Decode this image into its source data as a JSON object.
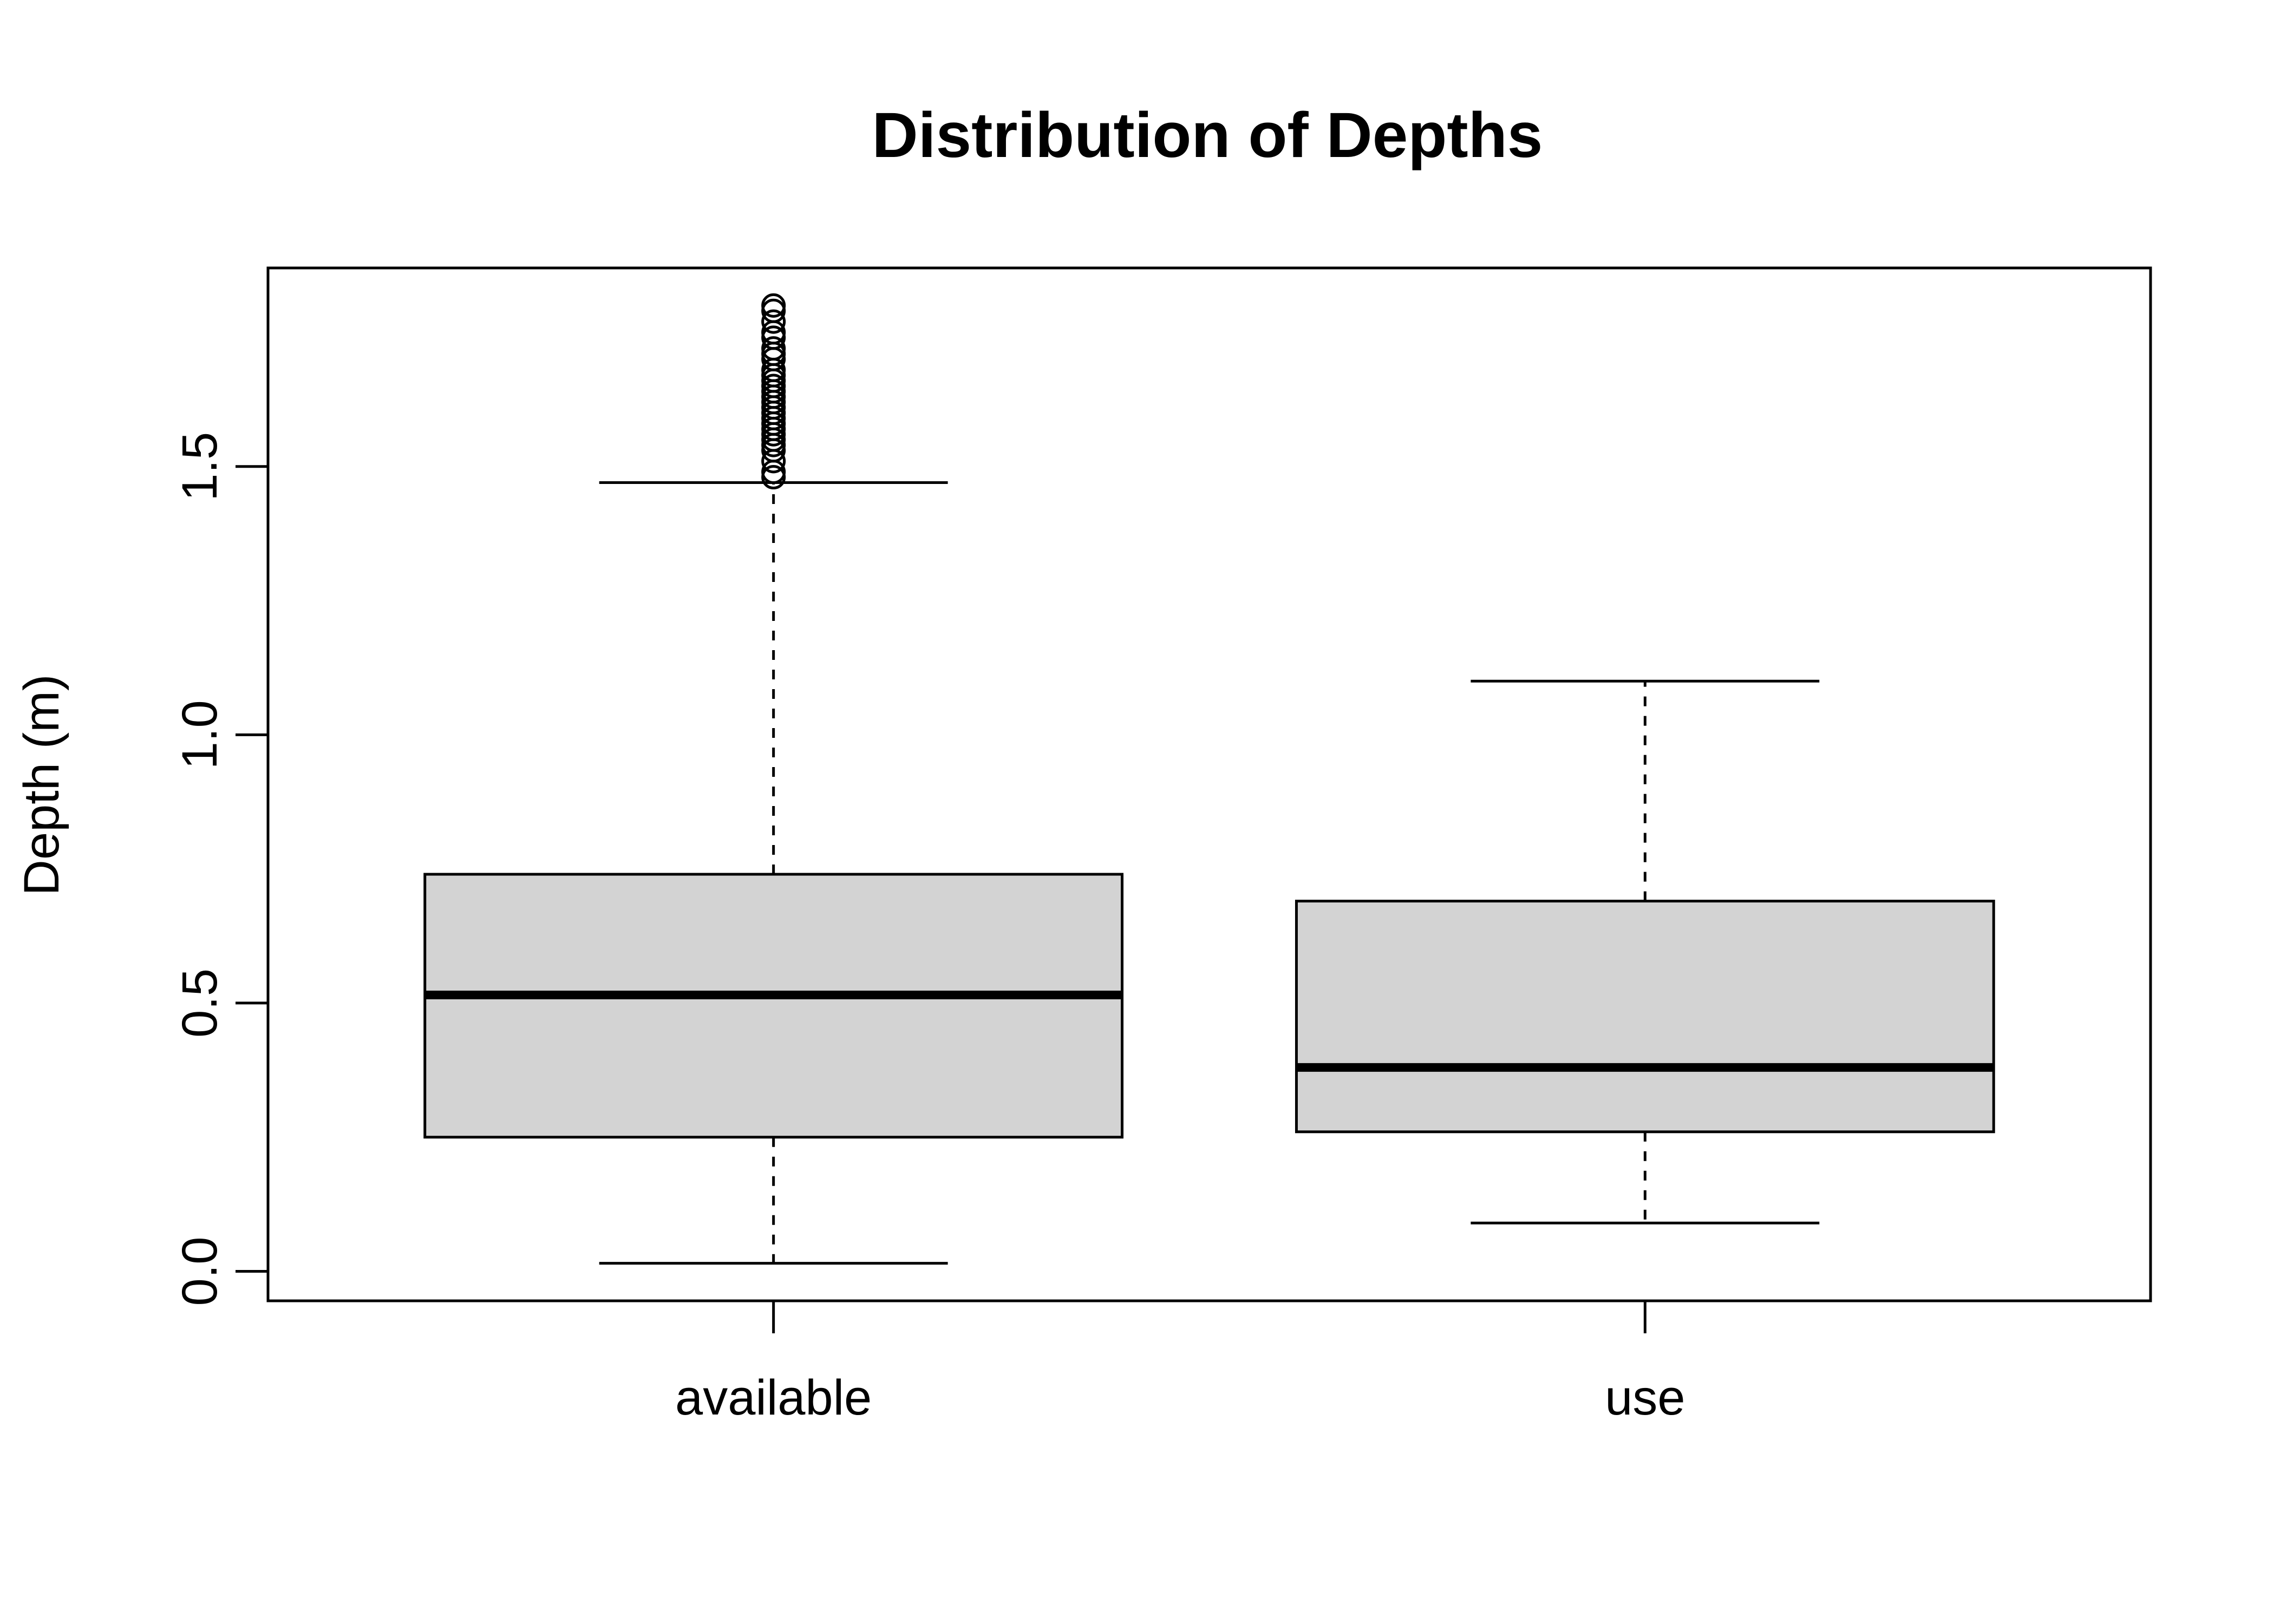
{
  "chart_data": {
    "type": "boxplot",
    "title": "Distribution of Depths",
    "xlabel": "",
    "ylabel": "Depth (m)",
    "ylim": [
      -0.055,
      1.87
    ],
    "y_ticks": [
      0.0,
      0.5,
      1.0,
      1.5
    ],
    "y_tick_labels": [
      "0.0",
      "0.5",
      "1.0",
      "1.5"
    ],
    "grid": false,
    "box_fill": "#d3d3d3",
    "line_color": "#000000",
    "categories": [
      "available",
      "use"
    ],
    "boxes": [
      {
        "name": "available",
        "whisker_low": 0.015,
        "q1": 0.25,
        "median": 0.515,
        "q3": 0.74,
        "whisker_high": 1.47,
        "outliers": [
          1.48,
          1.49,
          1.51,
          1.53,
          1.54,
          1.55,
          1.56,
          1.57,
          1.58,
          1.59,
          1.6,
          1.61,
          1.62,
          1.63,
          1.64,
          1.65,
          1.66,
          1.67,
          1.68,
          1.7,
          1.71,
          1.72,
          1.74,
          1.75,
          1.77,
          1.79,
          1.8
        ]
      },
      {
        "name": "use",
        "whisker_low": 0.09,
        "q1": 0.26,
        "median": 0.38,
        "q3": 0.69,
        "whisker_high": 1.1,
        "outliers": []
      }
    ]
  }
}
